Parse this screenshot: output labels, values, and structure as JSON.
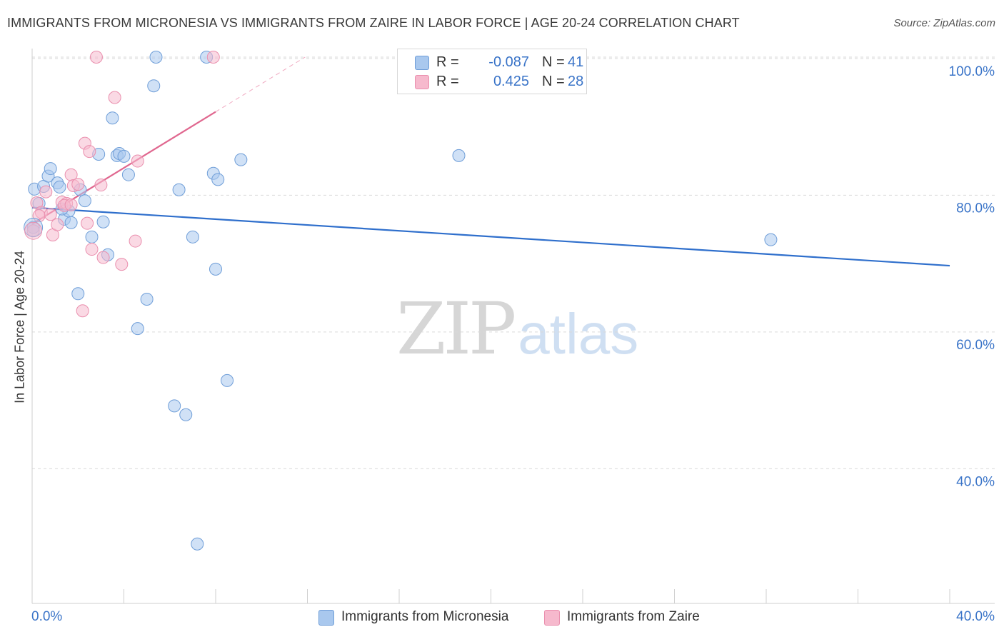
{
  "title": "IMMIGRANTS FROM MICRONESIA VS IMMIGRANTS FROM ZAIRE IN LABOR FORCE | AGE 20-24 CORRELATION CHART",
  "source": "Source: ZipAtlas.com",
  "watermark": {
    "zip": "ZIP",
    "atlas": "atlas"
  },
  "legend": {
    "rows": [
      {
        "r_label": "R =",
        "r_value": "-0.087",
        "n_label": "N =",
        "n_value": "41"
      },
      {
        "r_label": "R =",
        "r_value": "0.425",
        "n_label": "N =",
        "n_value": "28"
      }
    ]
  },
  "bottom_legend": [
    "Immigrants from Micronesia",
    "Immigrants from Zaire"
  ],
  "colors": {
    "blue_fill": "#a9c8ee",
    "blue_stroke": "#6f9ed8",
    "blue_line": "#2f6fcc",
    "pink_fill": "#f6b9cd",
    "pink_stroke": "#ea8fae",
    "pink_line": "#e0678f",
    "axis_text": "#3a74c8"
  },
  "chart_data": {
    "type": "scatter",
    "title": "IMMIGRANTS FROM MICRONESIA VS IMMIGRANTS FROM ZAIRE IN LABOR FORCE | AGE 20-24 CORRELATION CHART",
    "xlabel": "",
    "ylabel": "In Labor Force | Age 20-24",
    "xlim": [
      0,
      40
    ],
    "ylim": [
      21.8,
      101.5
    ],
    "x_tick_labels": [
      "0.0%",
      "40.0%"
    ],
    "y_ticks": [
      {
        "value": 100,
        "label": "100.0%"
      },
      {
        "value": 80,
        "label": "80.0%"
      },
      {
        "value": 60,
        "label": "60.0%"
      },
      {
        "value": 40,
        "label": "40.0%"
      }
    ],
    "series": [
      {
        "name": "Immigrants from Micronesia",
        "color": "blue",
        "r": -0.087,
        "n": 41,
        "trend": {
          "x0": 0,
          "y0": 78.2,
          "x1": 40,
          "y1": 69.7
        },
        "points": [
          [
            0.05,
            75.3
          ],
          [
            0.1,
            80.9
          ],
          [
            0.3,
            78.8
          ],
          [
            0.5,
            81.3
          ],
          [
            0.7,
            82.8
          ],
          [
            0.8,
            83.9
          ],
          [
            1.1,
            81.8
          ],
          [
            1.2,
            81.2
          ],
          [
            1.4,
            76.5
          ],
          [
            1.6,
            77.7
          ],
          [
            1.7,
            76.0
          ],
          [
            2.1,
            80.8
          ],
          [
            2.3,
            79.2
          ],
          [
            2.6,
            73.9
          ],
          [
            2.9,
            86.0
          ],
          [
            3.1,
            76.1
          ],
          [
            3.3,
            71.3
          ],
          [
            3.5,
            91.3
          ],
          [
            3.7,
            85.8
          ],
          [
            3.8,
            86.1
          ],
          [
            4.0,
            85.7
          ],
          [
            4.2,
            83.0
          ],
          [
            4.6,
            60.5
          ],
          [
            5.0,
            64.8
          ],
          [
            5.3,
            96.0
          ],
          [
            5.4,
            100.2
          ],
          [
            6.2,
            49.2
          ],
          [
            6.4,
            80.8
          ],
          [
            6.7,
            47.9
          ],
          [
            7.0,
            73.9
          ],
          [
            7.6,
            100.2
          ],
          [
            7.9,
            83.2
          ],
          [
            8.0,
            69.2
          ],
          [
            8.1,
            82.3
          ],
          [
            8.5,
            52.9
          ],
          [
            9.1,
            85.2
          ],
          [
            2.0,
            65.6
          ],
          [
            18.6,
            85.8
          ],
          [
            32.2,
            73.5
          ],
          [
            7.2,
            29.0
          ],
          [
            1.3,
            78.0
          ]
        ]
      },
      {
        "name": "Immigrants from Zaire",
        "color": "pink",
        "r": 0.425,
        "n": 28,
        "trend": {
          "x0": 0,
          "y0": 75.8,
          "x1": 8.0,
          "y1": 92.2
        },
        "trend_dashed": {
          "x0": 8.0,
          "y0": 92.2,
          "x1": 11.9,
          "y1": 100.2
        },
        "points": [
          [
            0.05,
            74.8
          ],
          [
            0.2,
            78.9
          ],
          [
            0.4,
            77.5
          ],
          [
            0.6,
            80.5
          ],
          [
            0.9,
            74.2
          ],
          [
            1.1,
            75.7
          ],
          [
            1.3,
            79.0
          ],
          [
            1.5,
            78.8
          ],
          [
            1.4,
            78.5
          ],
          [
            1.7,
            83.0
          ],
          [
            1.8,
            81.4
          ],
          [
            2.0,
            81.6
          ],
          [
            2.2,
            63.1
          ],
          [
            2.3,
            87.6
          ],
          [
            2.5,
            86.4
          ],
          [
            2.4,
            75.9
          ],
          [
            2.6,
            72.1
          ],
          [
            3.0,
            81.5
          ],
          [
            3.1,
            70.9
          ],
          [
            3.6,
            94.3
          ],
          [
            3.9,
            69.9
          ],
          [
            4.6,
            85.0
          ],
          [
            4.5,
            73.3
          ],
          [
            2.8,
            100.2
          ],
          [
            7.9,
            100.2
          ],
          [
            0.3,
            77.0
          ],
          [
            1.7,
            78.6
          ],
          [
            0.8,
            77.2
          ]
        ]
      }
    ]
  }
}
